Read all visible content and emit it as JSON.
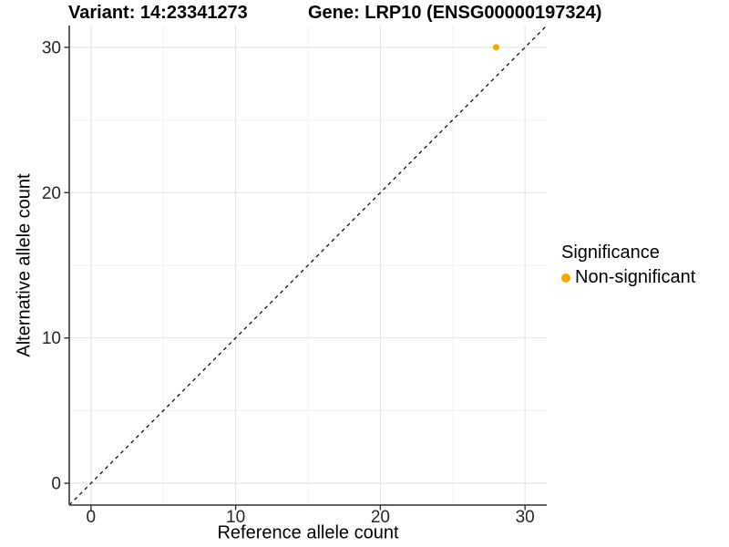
{
  "title": {
    "variant": "Variant: 14:23341273",
    "gene": "Gene: LRP10 (ENSG00000197324)"
  },
  "legend": {
    "title": "Significance",
    "items": [
      {
        "label": "Non-significant",
        "color": "#FFA500",
        "marker": "circle-icon"
      }
    ]
  },
  "colors": {
    "point": "#FFA500",
    "grid_major": "#e6e6e6",
    "grid_minor": "#f2f2f2",
    "axis_line": "#4d4d4d",
    "tick_mark": "#333333",
    "tick_text": "#262626",
    "reference_line": "#111111"
  },
  "chart_data": {
    "type": "scatter",
    "title": "Variant: 14:23341273  |  Gene: LRP10 (ENSG00000197324)",
    "xlabel": "Reference allele count",
    "ylabel": "Alternative allele count",
    "xlim": [
      -1.5,
      31.5
    ],
    "ylim": [
      -1.5,
      31.5
    ],
    "x_ticks": [
      0,
      10,
      20,
      30
    ],
    "y_ticks": [
      0,
      10,
      20,
      30
    ],
    "x_minor_ticks": [
      5,
      15,
      25
    ],
    "y_minor_ticks": [
      5,
      15,
      25
    ],
    "grid": true,
    "legend_position": "right",
    "series": [
      {
        "name": "Non-significant",
        "color": "#FFA500",
        "points": [
          {
            "x": 28,
            "y": 30
          }
        ]
      }
    ],
    "reference_line": {
      "type": "identity y=x",
      "style": "dashed",
      "from": [
        -1.5,
        -1.5
      ],
      "to": [
        31.5,
        31.5
      ]
    }
  }
}
